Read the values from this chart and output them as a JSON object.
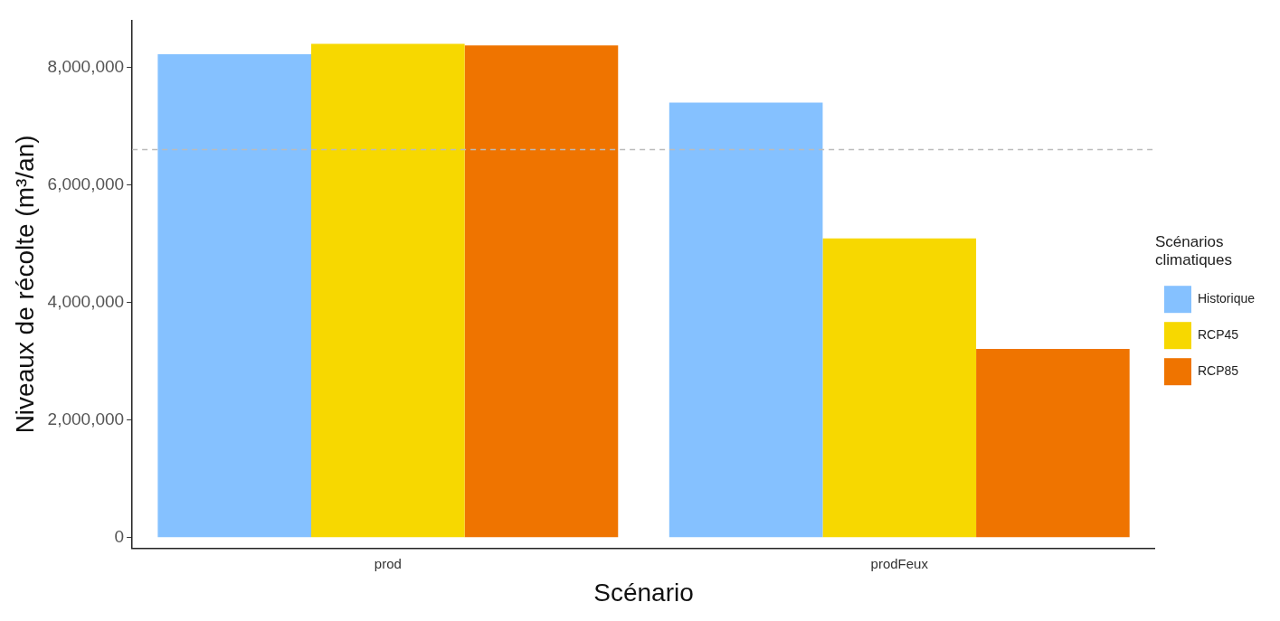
{
  "chart_data": {
    "type": "bar",
    "xlabel": "Scénario",
    "ylabel": "Niveaux de récolte (m³/an)",
    "legend_title": "Scénarios climatiques",
    "categories": [
      "prod",
      "prodFeux"
    ],
    "series": [
      {
        "name": "Historique",
        "color": "#85c1ff",
        "values": [
          8220000,
          7400000
        ]
      },
      {
        "name": "RCP45",
        "color": "#f7d800",
        "values": [
          8400000,
          5090000
        ]
      },
      {
        "name": "RCP85",
        "color": "#ef7400",
        "values": [
          8370000,
          3210000
        ]
      }
    ],
    "ylim": [
      -180000,
      8800000
    ],
    "yticks": [
      {
        "value": 0,
        "label": "0"
      },
      {
        "value": 2000000,
        "label": "2,000,000"
      },
      {
        "value": 4000000,
        "label": "4,000,000"
      },
      {
        "value": 6000000,
        "label": "6,000,000"
      },
      {
        "value": 8000000,
        "label": "8,000,000"
      }
    ],
    "ref_lines": [
      {
        "axis": "y",
        "value": 6600000,
        "label": null,
        "color": "#bbbbbb",
        "line_style": "dashed"
      }
    ],
    "grid": false,
    "legend": "right"
  }
}
